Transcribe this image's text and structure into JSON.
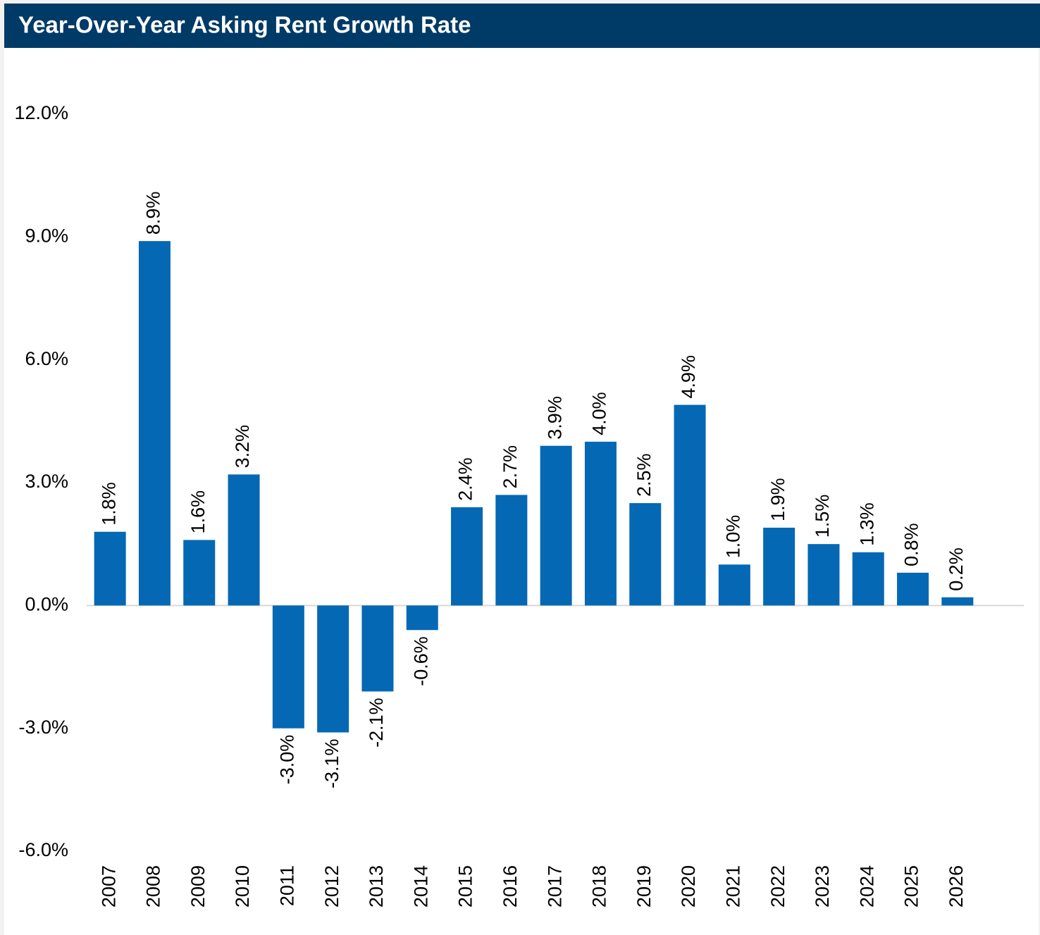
{
  "chart_data": {
    "type": "bar",
    "title": "Year-Over-Year Asking Rent Growth Rate",
    "categories": [
      "2007",
      "2008",
      "2009",
      "2010",
      "2011",
      "2012",
      "2013",
      "2014",
      "2015",
      "2016",
      "2017",
      "2018",
      "2019",
      "2020",
      "2021",
      "2022",
      "2023",
      "2024",
      "2025",
      "2026"
    ],
    "values": [
      1.8,
      8.9,
      1.6,
      3.2,
      -3.0,
      -3.1,
      -2.1,
      -0.6,
      2.4,
      2.7,
      3.9,
      4.0,
      2.5,
      4.9,
      1.0,
      1.9,
      1.5,
      1.3,
      0.8,
      0.2
    ],
    "value_labels": [
      "1.8%",
      "8.9%",
      "1.6%",
      "3.2%",
      "-3.0%",
      "-3.1%",
      "-2.1%",
      "-0.6%",
      "2.4%",
      "2.7%",
      "3.9%",
      "4.0%",
      "2.5%",
      "4.9%",
      "1.0%",
      "1.9%",
      "1.5%",
      "1.3%",
      "0.8%",
      "0.2%"
    ],
    "color": "#0468b4",
    "ylim": [
      -6,
      12
    ],
    "yticks": [
      {
        "value": -6,
        "label": "-6.0%"
      },
      {
        "value": -3,
        "label": "-3.0%"
      },
      {
        "value": 0,
        "label": "0.0%"
      },
      {
        "value": 3,
        "label": "3.0%"
      },
      {
        "value": 6,
        "label": "6.0%"
      },
      {
        "value": 9,
        "label": "9.0%"
      },
      {
        "value": 12,
        "label": "12.0%"
      }
    ]
  }
}
